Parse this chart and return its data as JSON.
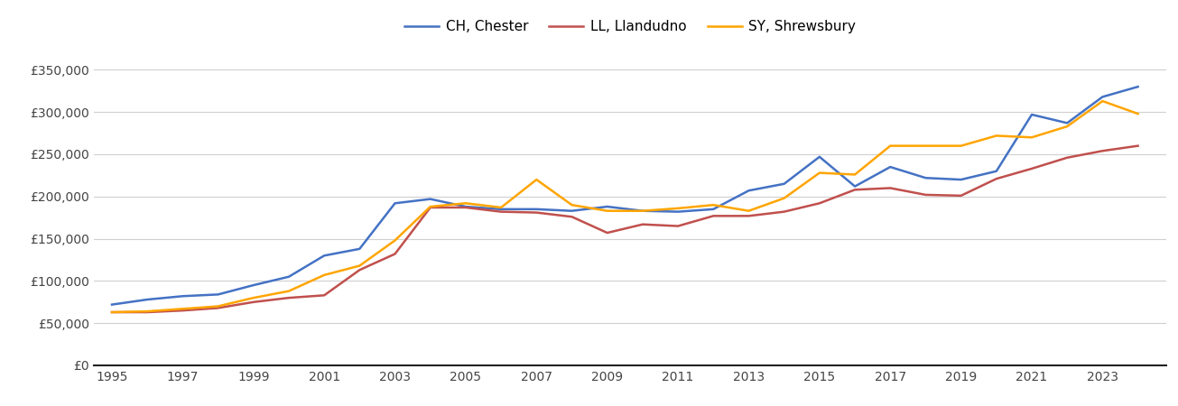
{
  "years": [
    1995,
    1996,
    1997,
    1998,
    1999,
    2000,
    2001,
    2002,
    2003,
    2004,
    2005,
    2006,
    2007,
    2008,
    2009,
    2010,
    2011,
    2012,
    2013,
    2014,
    2015,
    2016,
    2017,
    2018,
    2019,
    2020,
    2021,
    2022,
    2023,
    2024
  ],
  "CH_Chester": [
    72000,
    78000,
    82000,
    84000,
    95000,
    105000,
    130000,
    138000,
    192000,
    197000,
    188000,
    185000,
    185000,
    183000,
    188000,
    183000,
    182000,
    185000,
    207000,
    215000,
    247000,
    212000,
    235000,
    222000,
    220000,
    230000,
    297000,
    287000,
    318000,
    330000
  ],
  "LL_Llandudno": [
    63000,
    63000,
    65000,
    68000,
    75000,
    80000,
    83000,
    113000,
    132000,
    187000,
    187000,
    182000,
    181000,
    176000,
    157000,
    167000,
    165000,
    177000,
    177000,
    182000,
    192000,
    208000,
    210000,
    202000,
    201000,
    221000,
    233000,
    246000,
    254000,
    260000
  ],
  "SY_Shrewsbury": [
    63000,
    64000,
    67000,
    70000,
    80000,
    88000,
    107000,
    118000,
    148000,
    188000,
    192000,
    187000,
    220000,
    190000,
    183000,
    183000,
    186000,
    190000,
    183000,
    198000,
    228000,
    226000,
    260000,
    260000,
    260000,
    272000,
    270000,
    283000,
    313000,
    298000
  ],
  "colors": {
    "CH_Chester": "#4472C4",
    "LL_Llandudno": "#C0504D",
    "SY_Shrewsbury": "#FFA500"
  },
  "legend_labels": [
    "CH, Chester",
    "LL, Llandudno",
    "SY, Shrewsbury"
  ],
  "ylim": [
    0,
    375000
  ],
  "yticks": [
    0,
    50000,
    100000,
    150000,
    200000,
    250000,
    300000,
    350000
  ],
  "xticks": [
    1995,
    1997,
    1999,
    2001,
    2003,
    2005,
    2007,
    2009,
    2011,
    2013,
    2015,
    2017,
    2019,
    2021,
    2023
  ],
  "xlim_left": 1994.5,
  "xlim_right": 2024.8,
  "bg_color": "#ffffff",
  "grid_color": "#d0d0d0"
}
